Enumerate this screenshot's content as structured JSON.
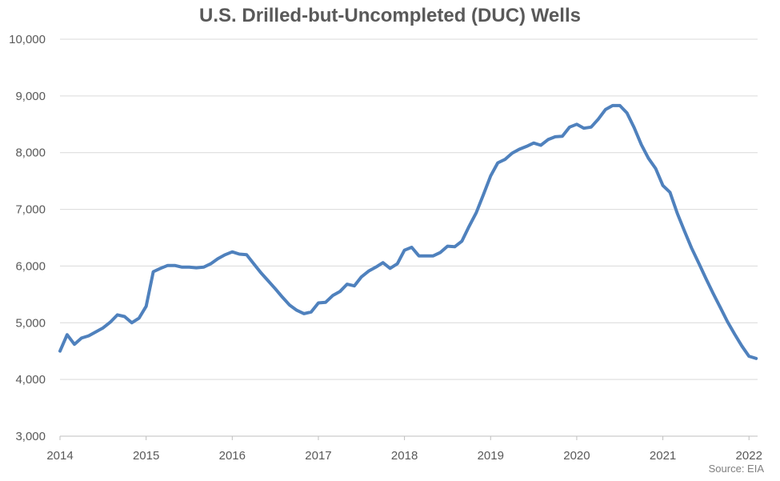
{
  "chart_data": {
    "type": "line",
    "title": "U.S. Drilled-but-Uncompleted (DUC) Wells",
    "source": "Source: EIA",
    "xlabel": "",
    "ylabel": "",
    "ylim": [
      3000,
      10000
    ],
    "xlim": [
      2014.0,
      2022.1
    ],
    "y_ticks": [
      "3,000",
      "4,000",
      "5,000",
      "6,000",
      "7,000",
      "8,000",
      "9,000",
      "10,000"
    ],
    "x_ticks": [
      "2014",
      "2015",
      "2016",
      "2017",
      "2018",
      "2019",
      "2020",
      "2021",
      "2022"
    ],
    "grid": "horizontal",
    "color": "#4f81bd",
    "series": [
      {
        "x": [
          2014.0,
          2014.083,
          2014.167,
          2014.25,
          2014.333,
          2014.417,
          2014.5,
          2014.583,
          2014.667,
          2014.75,
          2014.833,
          2014.917,
          2015.0,
          2015.083,
          2015.167,
          2015.25,
          2015.333,
          2015.417,
          2015.5,
          2015.583,
          2015.667,
          2015.75,
          2015.833,
          2015.917,
          2016.0,
          2016.083,
          2016.167,
          2016.25,
          2016.333,
          2016.417,
          2016.5,
          2016.583,
          2016.667,
          2016.75,
          2016.833,
          2016.917,
          2017.0,
          2017.083,
          2017.167,
          2017.25,
          2017.333,
          2017.417,
          2017.5,
          2017.583,
          2017.667,
          2017.75,
          2017.833,
          2017.917,
          2018.0,
          2018.083,
          2018.167,
          2018.25,
          2018.333,
          2018.417,
          2018.5,
          2018.583,
          2018.667,
          2018.75,
          2018.833,
          2018.917,
          2019.0,
          2019.083,
          2019.167,
          2019.25,
          2019.333,
          2019.417,
          2019.5,
          2019.583,
          2019.667,
          2019.75,
          2019.833,
          2019.917,
          2020.0,
          2020.083,
          2020.167,
          2020.25,
          2020.333,
          2020.417,
          2020.5,
          2020.583,
          2020.667,
          2020.75,
          2020.833,
          2020.917,
          2021.0,
          2021.083,
          2021.167,
          2021.25,
          2021.333,
          2021.417,
          2021.5,
          2021.583,
          2021.667,
          2021.75,
          2021.833,
          2021.917,
          2022.0,
          2022.083
        ],
        "values": [
          4500,
          4790,
          4620,
          4730,
          4770,
          4840,
          4910,
          5010,
          5140,
          5110,
          5000,
          5080,
          5290,
          5900,
          5960,
          6010,
          6010,
          5980,
          5980,
          5970,
          5980,
          6040,
          6130,
          6200,
          6250,
          6210,
          6200,
          6040,
          5880,
          5740,
          5600,
          5450,
          5310,
          5220,
          5160,
          5190,
          5350,
          5360,
          5480,
          5550,
          5680,
          5650,
          5810,
          5910,
          5980,
          6060,
          5960,
          6040,
          6280,
          6330,
          6180,
          6180,
          6180,
          6240,
          6350,
          6340,
          6440,
          6700,
          6940,
          7260,
          7590,
          7820,
          7880,
          7990,
          8060,
          8110,
          8170,
          8130,
          8230,
          8280,
          8290,
          8450,
          8500,
          8430,
          8450,
          8590,
          8760,
          8830,
          8830,
          8700,
          8440,
          8140,
          7900,
          7720,
          7420,
          7300,
          6930,
          6620,
          6320,
          6050,
          5780,
          5520,
          5270,
          5020,
          4800,
          4590,
          4410,
          4370
        ]
      }
    ]
  }
}
